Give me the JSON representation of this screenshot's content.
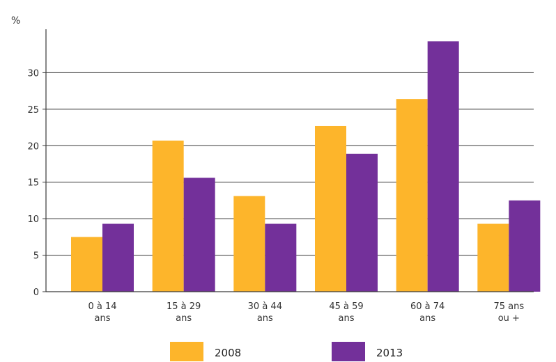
{
  "chart_data": {
    "type": "bar",
    "title": "",
    "xlabel": "",
    "ylabel": "%",
    "ylim": [
      0,
      35
    ],
    "yticks": [
      0,
      5,
      10,
      15,
      20,
      25,
      30
    ],
    "grid": true,
    "legend_position": "bottom",
    "categories": [
      [
        "0 à 14",
        "ans"
      ],
      [
        "15 à 29",
        "ans"
      ],
      [
        "30 à 44",
        "ans"
      ],
      [
        "45 à 59",
        "ans"
      ],
      [
        "60 à 74",
        "ans"
      ],
      [
        "75 ans",
        "ou +"
      ]
    ],
    "series": [
      {
        "name": "2008",
        "color": "#FDB52B",
        "values": [
          7.5,
          20.7,
          13.1,
          22.7,
          26.4,
          9.3
        ]
      },
      {
        "name": "2013",
        "color": "#73309A",
        "values": [
          9.3,
          15.6,
          9.3,
          18.9,
          34.3,
          12.5
        ]
      }
    ]
  }
}
